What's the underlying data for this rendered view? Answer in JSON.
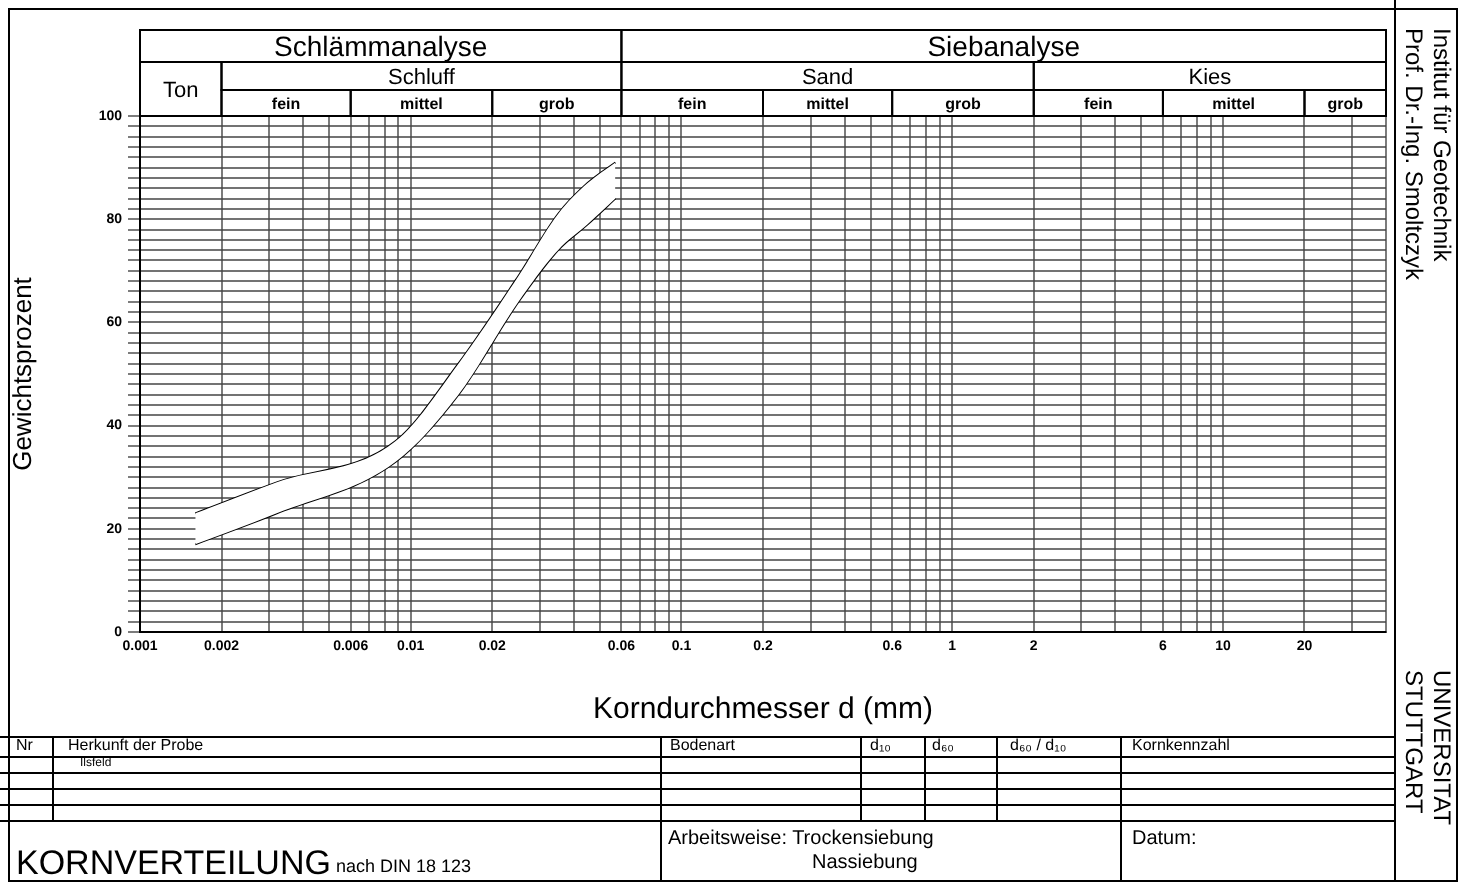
{
  "chart_data": {
    "type": "line",
    "xlabel": "Korndurchmesser d (mm)",
    "ylabel": "Gewichtsprozent",
    "x": [
      0.0016,
      0.0032,
      0.0088,
      0.015,
      0.025,
      0.035,
      0.045,
      0.057
    ],
    "series": [
      {
        "color": "#000000",
        "values": [
          23,
          29,
          37,
          52,
          69,
          81,
          87,
          91
        ],
        "upper": [
          23,
          29,
          37,
          52,
          69,
          81,
          87,
          91
        ],
        "lower": [
          17,
          23,
          33,
          46,
          64,
          74,
          79,
          84
        ]
      },
      {
        "color": "#000000",
        "values": [
          17,
          23,
          33,
          46,
          64,
          74,
          79,
          84
        ]
      }
    ],
    "log": "x",
    "xlim": [
      0.001,
      40
    ],
    "ylim": [
      0,
      100
    ],
    "xticks": [
      0.001,
      0.002,
      {
        "value": 0.003,
        "label": null
      },
      {
        "value": 0.004,
        "label": null
      },
      {
        "value": 0.005,
        "label": null
      },
      0.006,
      {
        "value": 0.007,
        "label": null
      },
      {
        "value": 0.008,
        "label": null
      },
      {
        "value": 0.009,
        "label": null
      },
      0.01,
      0.02,
      {
        "value": 0.03,
        "label": null
      },
      {
        "value": 0.04,
        "label": null
      },
      {
        "value": 0.05,
        "label": null
      },
      0.06,
      {
        "value": 0.07,
        "label": null
      },
      {
        "value": 0.08,
        "label": null
      },
      {
        "value": 0.09,
        "label": null
      },
      0.1,
      0.2,
      {
        "value": 0.3,
        "label": null
      },
      {
        "value": 0.4,
        "label": null
      },
      {
        "value": 0.5,
        "label": null
      },
      0.6,
      {
        "value": 0.7,
        "label": null
      },
      {
        "value": 0.8,
        "label": null
      },
      {
        "value": 0.9,
        "label": null
      },
      1,
      2,
      {
        "value": 3,
        "label": null
      },
      {
        "value": 4,
        "label": null
      },
      {
        "value": 5,
        "label": null
      },
      6,
      {
        "value": 7,
        "label": null
      },
      {
        "value": 8,
        "label": null
      },
      {
        "value": 9,
        "label": null
      },
      10,
      20,
      {
        "value": 30,
        "label": null
      },
      {
        "value": 40,
        "label": null
      }
    ],
    "yticks": [
      0,
      {
        "value": 2,
        "label": null
      },
      {
        "value": 4,
        "label": null
      },
      {
        "value": 6,
        "label": null
      },
      {
        "value": 8,
        "label": null
      },
      {
        "value": 10,
        "label": null
      },
      {
        "value": 12,
        "label": null
      },
      {
        "value": 14,
        "label": null
      },
      {
        "value": 16,
        "label": null
      },
      {
        "value": 18,
        "label": null
      },
      20,
      {
        "value": 22,
        "label": null
      },
      {
        "value": 24,
        "label": null
      },
      {
        "value": 26,
        "label": null
      },
      {
        "value": 28,
        "label": null
      },
      {
        "value": 30,
        "label": null
      },
      {
        "value": 32,
        "label": null
      },
      {
        "value": 34,
        "label": null
      },
      {
        "value": 36,
        "label": null
      },
      {
        "value": 38,
        "label": null
      },
      40,
      {
        "value": 42,
        "label": null
      },
      {
        "value": 44,
        "label": null
      },
      {
        "value": 46,
        "label": null
      },
      {
        "value": 48,
        "label": null
      },
      {
        "value": 50,
        "label": null
      },
      {
        "value": 52,
        "label": null
      },
      {
        "value": 54,
        "label": null
      },
      {
        "value": 56,
        "label": null
      },
      {
        "value": 58,
        "label": null
      },
      60,
      {
        "value": 62,
        "label": null
      },
      {
        "value": 64,
        "label": null
      },
      {
        "value": 66,
        "label": null
      },
      {
        "value": 68,
        "label": null
      },
      {
        "value": 70,
        "label": null
      },
      {
        "value": 72,
        "label": null
      },
      {
        "value": 74,
        "label": null
      },
      {
        "value": 76,
        "label": null
      },
      {
        "value": 78,
        "label": null
      },
      80,
      {
        "value": 82,
        "label": null
      },
      {
        "value": 84,
        "label": null
      },
      {
        "value": 86,
        "label": null
      },
      {
        "value": 88,
        "label": null
      },
      {
        "value": 90,
        "label": null
      },
      {
        "value": 92,
        "label": null
      },
      {
        "value": 94,
        "label": null
      },
      {
        "value": 96,
        "label": null
      },
      {
        "value": 98,
        "label": null
      },
      100
    ],
    "grid": true,
    "legend": false,
    "annotations": [
      "Institut für Geotechnik",
      "Prof. Dr.-Ing. Smoltczyk",
      "UNIVERSITAT",
      "STUTTGART",
      "Nr",
      "Herkunft der Probe",
      "Ilsfeld",
      "Bodenart",
      "d₁₀",
      "d₆₀",
      "d₆₀ / d₁₀",
      "Kornkennzahl",
      "KORNVERTEILUNG",
      "nach DIN 18 123",
      "Arbeitsweise: Trockensiebung",
      "Nassiebung",
      "Datum:",
      "Schlämmanalyse",
      "Siebanalyse",
      "Ton",
      "Schluff",
      "Sand",
      "Kies",
      "fein",
      "mittel",
      "grob",
      "fein",
      "mittel",
      "grob",
      "fein",
      "mittel",
      "grob"
    ]
  }
}
